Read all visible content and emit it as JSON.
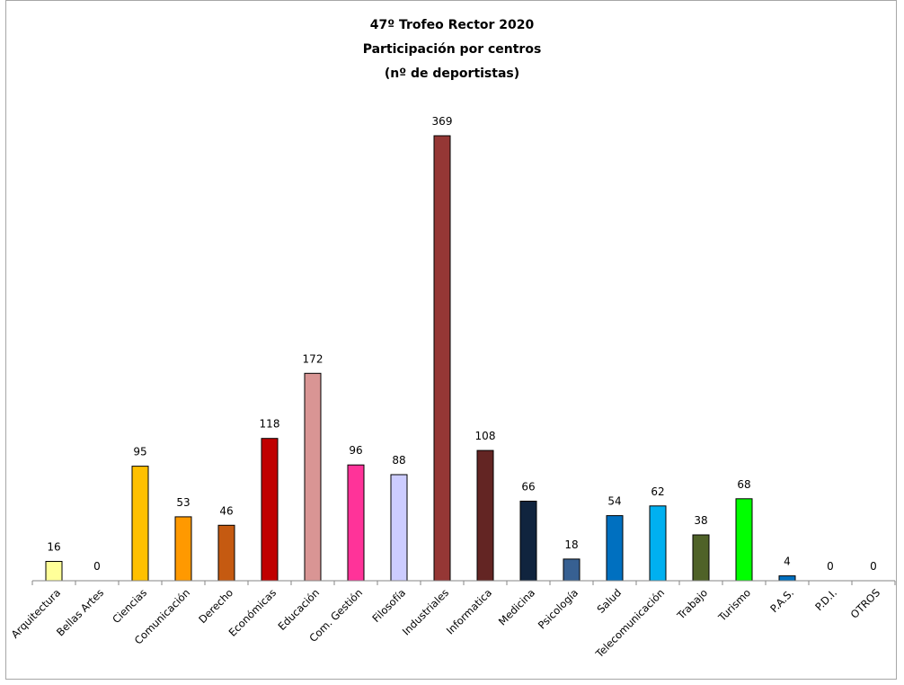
{
  "chart_data": {
    "type": "bar",
    "title": [
      "47º Trofeo Rector 2020",
      "Participación por centros",
      "(nº de deportistas)"
    ],
    "xlabel": "",
    "ylabel": "",
    "ylim": [
      0,
      369
    ],
    "grid": false,
    "legend": "none",
    "categories": [
      "Arquitectura",
      "Bellas Artes",
      "Ciencias",
      "Comunicación",
      "Derecho",
      "Económicas",
      "Educación",
      "Com. Gestión",
      "Filosofía",
      "Industriales",
      "Informatica",
      "Medicina",
      "Psicología",
      "Salud",
      "Telecomunicación",
      "Trabajo",
      "Turismo",
      "P.A.S.",
      "P.D.I.",
      "OTROS"
    ],
    "values": [
      16,
      0,
      95,
      53,
      46,
      118,
      172,
      96,
      88,
      369,
      108,
      66,
      18,
      54,
      62,
      38,
      68,
      4,
      0,
      0
    ],
    "colors": [
      "#ffff99",
      "#ffffff",
      "#ffc000",
      "#ff9900",
      "#c55a11",
      "#c00000",
      "#d99594",
      "#ff3399",
      "#ccccff",
      "#953735",
      "#632523",
      "#10243e",
      "#376092",
      "#0070c0",
      "#00b0f0",
      "#4f6228",
      "#00ff00",
      "#0070c0",
      "#ffffff",
      "#ffffff"
    ]
  }
}
